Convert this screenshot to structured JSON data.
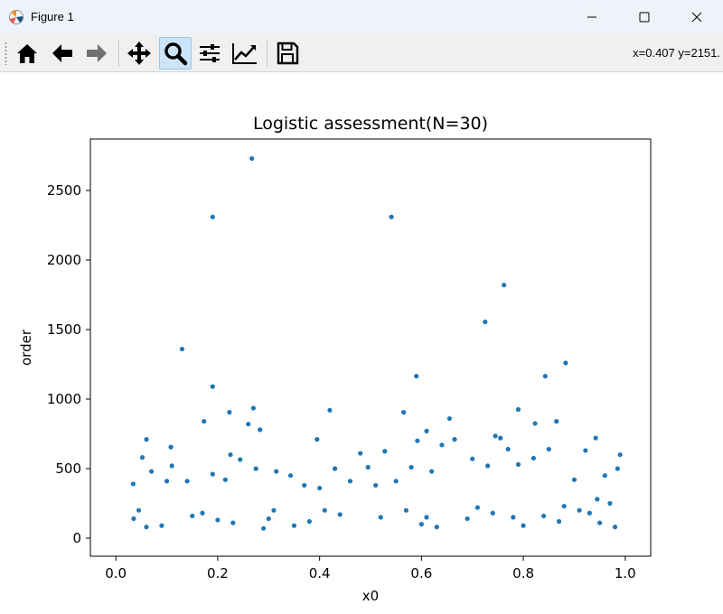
{
  "window": {
    "title": "Figure 1",
    "icons": {
      "app": "matplotlib-icon",
      "minimize": "minimize-icon",
      "maximize": "maximize-icon",
      "close": "close-icon"
    }
  },
  "toolbar": {
    "buttons": [
      {
        "name": "home",
        "icon": "home-icon",
        "active": false
      },
      {
        "name": "back",
        "icon": "back-arrow-icon",
        "active": false
      },
      {
        "name": "forward",
        "icon": "forward-arrow-icon",
        "active": false
      },
      {
        "name": "pan",
        "icon": "move-icon",
        "active": false
      },
      {
        "name": "zoom",
        "icon": "zoom-icon",
        "active": true
      },
      {
        "name": "subplots",
        "icon": "sliders-icon",
        "active": false
      },
      {
        "name": "edit-axes",
        "icon": "line-chart-icon",
        "active": false
      },
      {
        "name": "save",
        "icon": "save-icon",
        "active": false
      }
    ],
    "coordinates": "x=0.407 y=2151."
  },
  "colors": {
    "marker": "#1f77b4",
    "active_tool": "#cce4f7"
  },
  "chart_data": {
    "type": "scatter",
    "title": "Logistic assessment(N=30)",
    "xlabel": "x0",
    "ylabel": "order",
    "xlim": [
      -0.05,
      1.05
    ],
    "ylim": [
      -130,
      2870
    ],
    "xticks": [
      0.0,
      0.2,
      0.4,
      0.6,
      0.8,
      1.0
    ],
    "xtick_labels": [
      "0.0",
      "0.2",
      "0.4",
      "0.6",
      "0.8",
      "1.0"
    ],
    "yticks": [
      0,
      500,
      1000,
      1500,
      2000,
      2500
    ],
    "ytick_labels": [
      "0",
      "500",
      "1000",
      "1500",
      "2000",
      "2500"
    ],
    "grid": false,
    "points": {
      "x": [
        0.267,
        0.19,
        0.541,
        0.762,
        0.725,
        0.13,
        0.883,
        0.59,
        0.843,
        0.19,
        0.27,
        0.42,
        0.223,
        0.565,
        0.26,
        0.173,
        0.244,
        0.655,
        0.79,
        0.823,
        0.592,
        0.48,
        0.528,
        0.395,
        0.108,
        0.06,
        0.283,
        0.64,
        0.755,
        0.865,
        0.61,
        0.85,
        0.745,
        0.922,
        0.942,
        0.99,
        0.215,
        0.315,
        0.495,
        0.665,
        0.79,
        0.275,
        0.225,
        0.343,
        0.11,
        0.14,
        0.052,
        0.034,
        0.19,
        0.07,
        0.1,
        0.37,
        0.4,
        0.43,
        0.46,
        0.51,
        0.55,
        0.58,
        0.62,
        0.7,
        0.73,
        0.77,
        0.82,
        0.9,
        0.96,
        0.985,
        0.945,
        0.97,
        0.88,
        0.035,
        0.045,
        0.06,
        0.09,
        0.15,
        0.17,
        0.2,
        0.23,
        0.29,
        0.3,
        0.31,
        0.35,
        0.38,
        0.44,
        0.52,
        0.57,
        0.6,
        0.63,
        0.69,
        0.71,
        0.74,
        0.78,
        0.8,
        0.84,
        0.87,
        0.91,
        0.93,
        0.95,
        0.98,
        0.41,
        0.61
      ],
      "y": [
        2730,
        2310,
        2310,
        1820,
        1555,
        1360,
        1260,
        1165,
        1165,
        1090,
        935,
        920,
        905,
        905,
        820,
        840,
        565,
        860,
        925,
        825,
        700,
        610,
        625,
        710,
        655,
        710,
        780,
        670,
        720,
        840,
        770,
        640,
        735,
        630,
        720,
        600,
        420,
        480,
        510,
        710,
        530,
        500,
        600,
        450,
        520,
        410,
        580,
        390,
        460,
        480,
        410,
        380,
        360,
        500,
        410,
        380,
        410,
        510,
        480,
        570,
        520,
        640,
        575,
        420,
        450,
        500,
        280,
        250,
        230,
        140,
        200,
        80,
        90,
        160,
        180,
        130,
        110,
        70,
        140,
        200,
        90,
        120,
        170,
        150,
        200,
        100,
        80,
        140,
        220,
        180,
        150,
        90,
        160,
        120,
        200,
        180,
        110,
        80,
        200,
        150
      ]
    }
  }
}
